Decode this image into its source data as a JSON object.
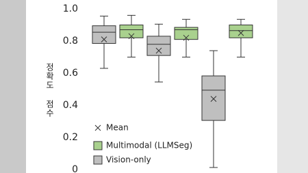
{
  "chart_data": {
    "type": "box",
    "y_label": "정확도 점수",
    "categories": [
      null,
      null,
      null,
      null,
      null,
      null
    ],
    "mean_label": "Mean",
    "series": [
      {
        "name": "Multimodal (LLMSeg)",
        "color": "#a9d18e",
        "values": [
          null,
          {
            "whislo": 0.7,
            "q1": 0.82,
            "med": 0.87,
            "q3": 0.9,
            "whishi": 0.96,
            "mean": 0.83
          },
          null,
          {
            "whislo": 0.7,
            "q1": 0.81,
            "med": 0.87,
            "q3": 0.885,
            "whishi": 0.935,
            "mean": 0.82
          },
          null,
          {
            "whislo": 0.7,
            "q1": 0.82,
            "med": 0.865,
            "q3": 0.9,
            "whishi": 0.935,
            "mean": 0.85
          }
        ]
      },
      {
        "name": "Vision-only",
        "color": "#bfbfbf",
        "values": [
          {
            "whislo": 0.63,
            "q1": 0.785,
            "med": 0.855,
            "q3": 0.895,
            "whishi": 0.955,
            "mean": 0.81
          },
          null,
          {
            "whislo": 0.545,
            "q1": 0.71,
            "med": 0.78,
            "q3": 0.83,
            "whishi": 0.905,
            "mean": 0.74
          },
          null,
          {
            "whislo": 0.013,
            "q1": 0.306,
            "med": 0.494,
            "q3": 0.583,
            "whishi": 0.74,
            "mean": 0.44
          },
          null
        ]
      }
    ],
    "ylim": [
      0,
      1
    ],
    "yticks": [
      0,
      {
        "value": 0.2,
        "label": "0.2"
      },
      0.4,
      0.6,
      0.8,
      {
        "value": 1,
        "label": "1.0"
      }
    ],
    "grid": false
  }
}
